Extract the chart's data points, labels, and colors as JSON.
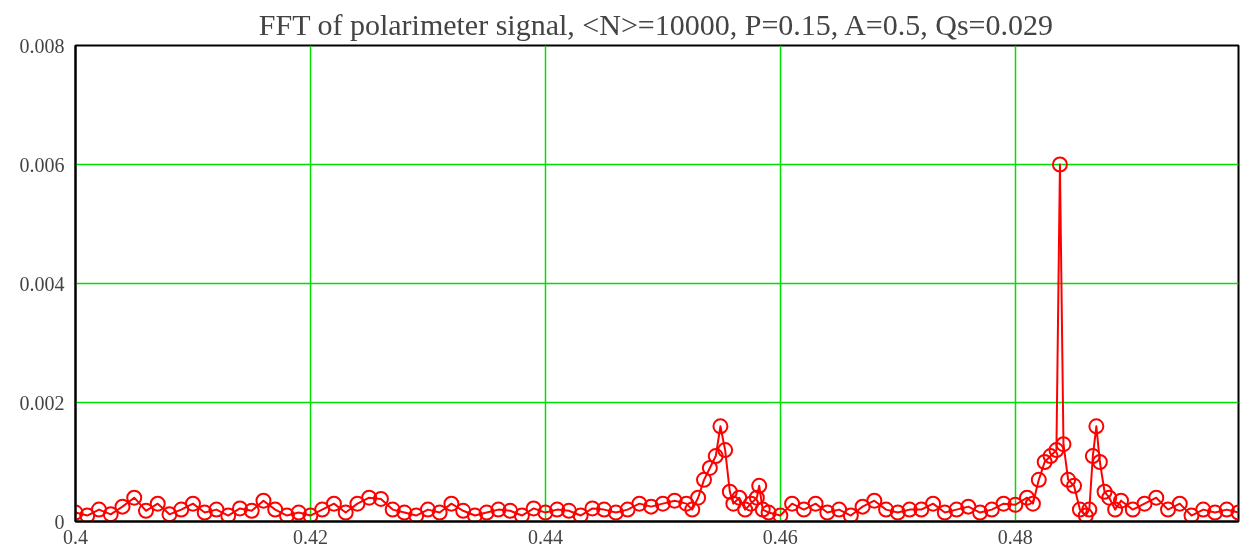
{
  "chart_data": {
    "type": "line",
    "title": "FFT of polarimeter signal, <N>=10000, P=0.15, A=0.5, Qs=0.029",
    "marker": "circle",
    "line_style": "solid",
    "grid": true,
    "xlim": [
      0.4,
      0.499
    ],
    "xticks": [
      0.4,
      0.42,
      0.44,
      0.46,
      0.48
    ],
    "ylim": [
      0,
      0.008
    ],
    "yticks": [
      0,
      0.002,
      0.004,
      0.006,
      0.008
    ],
    "series": [
      {
        "color": "#ff0000",
        "x": [
          0.4,
          0.401,
          0.402,
          0.403,
          0.404,
          0.405,
          0.406,
          0.407,
          0.408,
          0.409,
          0.41,
          0.411,
          0.412,
          0.413,
          0.414,
          0.415,
          0.416,
          0.417,
          0.418,
          0.419,
          0.42,
          0.421,
          0.422,
          0.423,
          0.424,
          0.425,
          0.426,
          0.427,
          0.428,
          0.429,
          0.43,
          0.431,
          0.432,
          0.433,
          0.434,
          0.435,
          0.436,
          0.437,
          0.438,
          0.439,
          0.44,
          0.441,
          0.442,
          0.443,
          0.444,
          0.445,
          0.446,
          0.447,
          0.448,
          0.449,
          0.45,
          0.451,
          0.452,
          0.4525,
          0.453,
          0.4535,
          0.454,
          0.4545,
          0.4549,
          0.4553,
          0.4557,
          0.456,
          0.4565,
          0.457,
          0.4575,
          0.458,
          0.4582,
          0.4585,
          0.459,
          0.46,
          0.461,
          0.462,
          0.463,
          0.464,
          0.465,
          0.466,
          0.467,
          0.468,
          0.469,
          0.47,
          0.471,
          0.472,
          0.473,
          0.474,
          0.475,
          0.476,
          0.477,
          0.478,
          0.479,
          0.48,
          0.481,
          0.4815,
          0.482,
          0.4825,
          0.483,
          0.4835,
          0.4838,
          0.4841,
          0.4845,
          0.485,
          0.4855,
          0.486,
          0.4863,
          0.4866,
          0.4869,
          0.4872,
          0.4876,
          0.488,
          0.4885,
          0.489,
          0.49,
          0.491,
          0.492,
          0.493,
          0.494,
          0.495,
          0.496,
          0.497,
          0.498,
          0.499
        ],
        "values": [
          0.00015,
          0.0001,
          0.0002,
          0.00012,
          0.00025,
          0.0004,
          0.00018,
          0.0003,
          0.00012,
          0.0002,
          0.0003,
          0.00015,
          0.0002,
          0.0001,
          0.00022,
          0.00018,
          0.00035,
          0.0002,
          0.0001,
          0.00015,
          0.0001,
          0.0002,
          0.0003,
          0.00015,
          0.0003,
          0.0004,
          0.00038,
          0.0002,
          0.00015,
          0.0001,
          0.0002,
          0.00015,
          0.0003,
          0.00018,
          0.0001,
          0.00015,
          0.0002,
          0.00018,
          0.0001,
          0.00022,
          0.00015,
          0.0002,
          0.00018,
          0.0001,
          0.00022,
          0.0002,
          0.00015,
          0.0002,
          0.0003,
          0.00025,
          0.0003,
          0.00035,
          0.0003,
          0.0002,
          0.0004,
          0.0007,
          0.0009,
          0.0011,
          0.0016,
          0.0012,
          0.0005,
          0.0003,
          0.0004,
          0.0002,
          0.0003,
          0.0004,
          0.0006,
          0.0002,
          0.00015,
          0.0001,
          0.0003,
          0.0002,
          0.0003,
          0.00015,
          0.0002,
          0.0001,
          0.00025,
          0.00035,
          0.0002,
          0.00015,
          0.0002,
          0.0002,
          0.0003,
          0.00015,
          0.0002,
          0.00025,
          0.00015,
          0.0002,
          0.0003,
          0.00028,
          0.0004,
          0.0003,
          0.0007,
          0.001,
          0.0011,
          0.0012,
          0.006,
          0.0013,
          0.0007,
          0.0006,
          0.0002,
          0.0001,
          0.0002,
          0.0011,
          0.0016,
          0.001,
          0.0005,
          0.0004,
          0.0002,
          0.00035,
          0.0002,
          0.0003,
          0.0004,
          0.0002,
          0.0003,
          0.0001,
          0.0002,
          0.00015,
          0.0002,
          0.00015
        ]
      }
    ]
  }
}
